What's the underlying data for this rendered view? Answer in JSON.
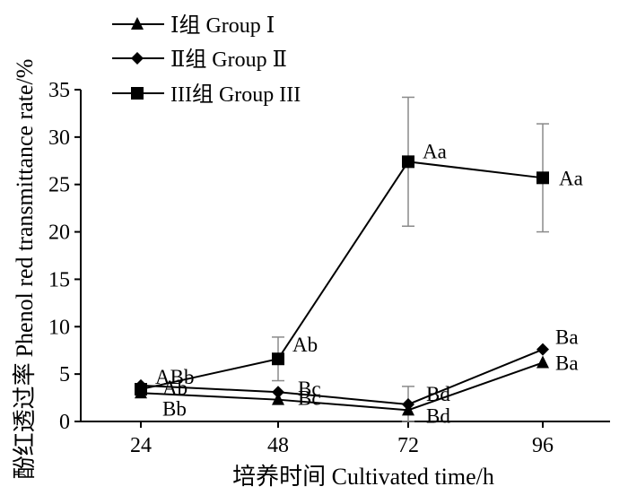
{
  "chart_data": {
    "type": "line",
    "xlabel": "培养时间 Cultivated time/h",
    "ylabel_cn": "酚红透过率",
    "ylabel_en": "Phenol red transmittance rate/%",
    "x": [
      24,
      48,
      72,
      96
    ],
    "x_tick_labels": [
      "24",
      "48",
      "72",
      "96"
    ],
    "ylim": [
      0,
      35
    ],
    "y_ticks": [
      0,
      5,
      10,
      15,
      20,
      25,
      30,
      35
    ],
    "grid": false,
    "legend_position": "top-left",
    "series": [
      {
        "name": "Ⅰ组 Group Ⅰ",
        "marker": "triangle",
        "values": [
          3.0,
          2.3,
          1.2,
          6.2
        ],
        "error": [
          0,
          0,
          0,
          0
        ],
        "labels": [
          "Bb",
          "Bc",
          "Bd",
          "Ba"
        ]
      },
      {
        "name": "Ⅱ组 Group Ⅱ",
        "marker": "diamond",
        "values": [
          3.8,
          3.1,
          1.8,
          7.6
        ],
        "error": [
          0,
          0,
          1.9,
          0
        ],
        "labels": [
          "Ab",
          "Bc",
          "Bd",
          "Ba"
        ]
      },
      {
        "name": "III组 Group III",
        "marker": "square",
        "values": [
          3.4,
          6.6,
          27.4,
          25.7
        ],
        "error": [
          0,
          2.3,
          6.8,
          5.7
        ],
        "labels": [
          "ABb",
          "Ab",
          "Aa",
          "Aa"
        ]
      }
    ],
    "line_color": "#000000",
    "errorbar_color": "#8a8a8a"
  }
}
